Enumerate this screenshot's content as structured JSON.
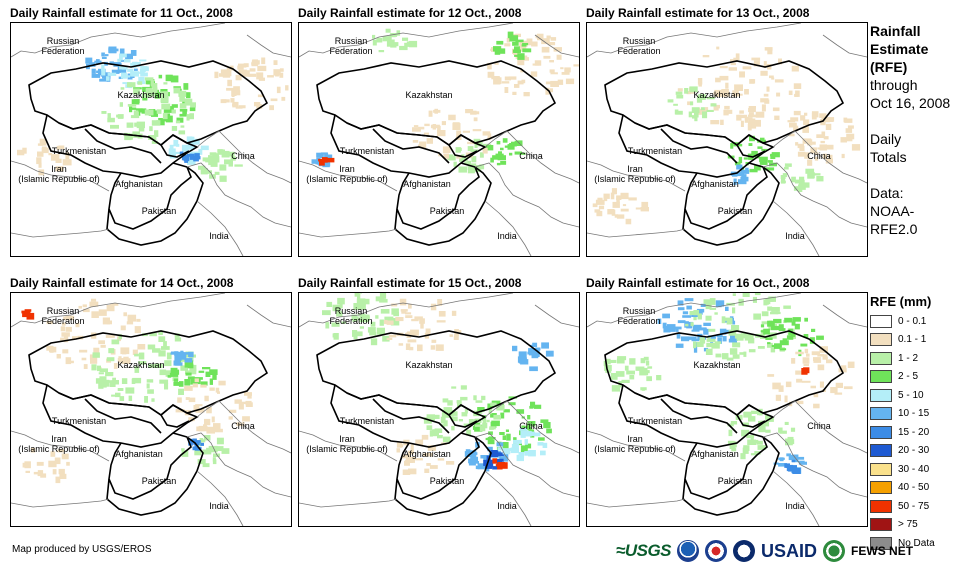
{
  "panels": [
    {
      "title": "Daily Rainfall estimate for 11 Oct., 2008",
      "labels": {
        "russia": "Russian\nFederation",
        "kazakhstan": "Kazakhstan",
        "turkmenistan": "Turkmenistan",
        "iran": "Iran\n(Islamic Republic of)",
        "afghanistan": "Afghanistan",
        "pakistan": "Pakistan",
        "china": "China",
        "india": "India"
      }
    },
    {
      "title": "Daily Rainfall estimate for 12 Oct., 2008",
      "labels": {
        "russia": "Russian\nFederation",
        "kazakhstan": "Kazakhstan",
        "turkmenistan": "Turkmenistan",
        "iran": "Iran\n(Islamic Republic of)",
        "afghanistan": "Afghanistan",
        "pakistan": "Pakistan",
        "china": "China",
        "india": "India"
      }
    },
    {
      "title": "Daily Rainfall estimate for 13 Oct., 2008",
      "labels": {
        "russia": "Russian\nFederation",
        "kazakhstan": "Kazakhstan",
        "turkmenistan": "Turkmenistan",
        "iran": "Iran\n(Islamic Republic of)",
        "afghanistan": "Afghanistan",
        "pakistan": "Pakistan",
        "china": "China",
        "india": "India"
      }
    },
    {
      "title": "Daily Rainfall estimate for 14 Oct., 2008",
      "labels": {
        "russia": "Russian\nFederation",
        "kazakhstan": "Kazakhstan",
        "turkmenistan": "Turkmenistan",
        "iran": "Iran\n(Islamic Republic of)",
        "afghanistan": "Afghanistan",
        "pakistan": "Pakistan",
        "china": "China",
        "india": "India"
      }
    },
    {
      "title": "Daily Rainfall estimate for 15 Oct., 2008",
      "labels": {
        "russia": "Russian\nFederation",
        "kazakhstan": "Kazakhstan",
        "turkmenistan": "Turkmenistan",
        "iran": "Iran\n(Islamic Republic of)",
        "afghanistan": "Afghanistan",
        "pakistan": "Pakistan",
        "china": "China",
        "india": "India"
      }
    },
    {
      "title": "Daily Rainfall estimate for 16 Oct., 2008",
      "labels": {
        "russia": "Russian\nFederation",
        "kazakhstan": "Kazakhstan",
        "turkmenistan": "Turkmenistan",
        "iran": "Iran\n(Islamic Republic of)",
        "afghanistan": "Afghanistan",
        "pakistan": "Pakistan",
        "china": "China",
        "india": "India"
      }
    }
  ],
  "side": {
    "heading": [
      "Rainfall",
      "Estimate",
      "(RFE)"
    ],
    "through": [
      "through",
      "Oct 16, 2008"
    ],
    "totals": [
      "Daily",
      "Totals"
    ],
    "data": [
      "Data:",
      "NOAA-",
      "RFE2.0"
    ]
  },
  "legend": {
    "title": "RFE (mm)",
    "items": [
      {
        "label": "0 - 0.1",
        "color": "#ffffff"
      },
      {
        "label": "0.1 - 1",
        "color": "#f2dfbf"
      },
      {
        "label": "1 - 2",
        "color": "#b8f0a8"
      },
      {
        "label": "2 - 5",
        "color": "#6fe35a"
      },
      {
        "label": "5 - 10",
        "color": "#b4eef8"
      },
      {
        "label": "10 - 15",
        "color": "#64b4f0"
      },
      {
        "label": "15 - 20",
        "color": "#3c8ce6"
      },
      {
        "label": "20 - 30",
        "color": "#1e5ad2"
      },
      {
        "label": "30 - 40",
        "color": "#fae18c"
      },
      {
        "label": "40 - 50",
        "color": "#f5a000"
      },
      {
        "label": "50 - 75",
        "color": "#f03200"
      },
      {
        "label": "> 75",
        "color": "#a01414"
      },
      {
        "label": "No Data",
        "color": "#8c8c8c"
      }
    ]
  },
  "footer": {
    "credit": "Map produced by USGS/EROS",
    "logos": {
      "usgs": "≈USGS",
      "usaid": "USAID",
      "fewsnet": "FEWS NET"
    }
  }
}
